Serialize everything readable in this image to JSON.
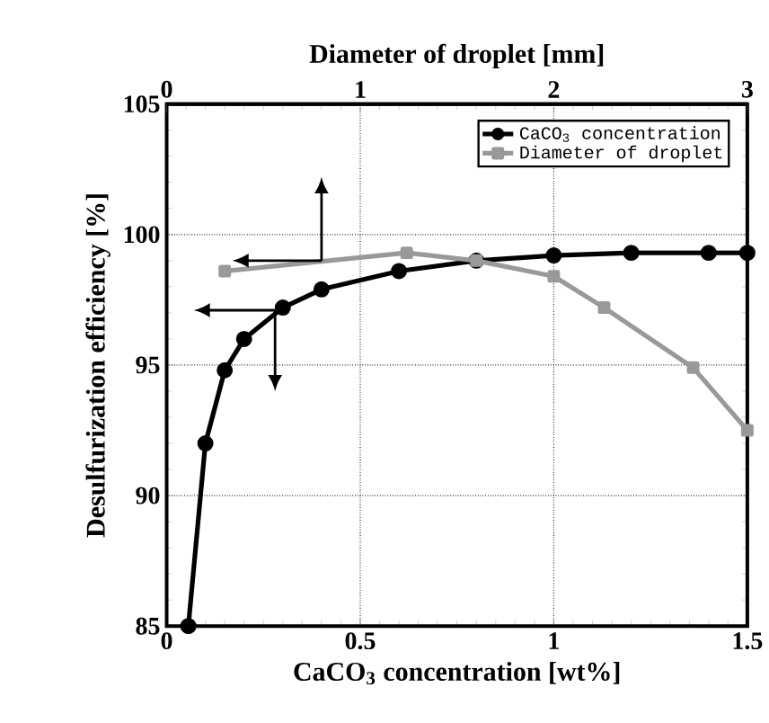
{
  "chart_data": {
    "type": "line",
    "xlabel": "CaCO$_{3}$ concentration [wt%]",
    "ylabel": "Desulfurization efficiency [%]",
    "x2label": "Diameter of droplet [mm]",
    "xlim": [
      0,
      1.5
    ],
    "xticks": [
      0,
      0.5,
      1,
      1.5
    ],
    "x2lim": [
      0,
      3
    ],
    "x2ticks": [
      0,
      1,
      2,
      3
    ],
    "ylim": [
      85,
      105
    ],
    "yticks": [
      85,
      90,
      95,
      100,
      105
    ],
    "grid": true,
    "legend": "top right",
    "series": [
      {
        "name": "CaCO$_{3}$ concentration",
        "color": "#000000",
        "marker": "circle",
        "x": [
          0.056,
          0.1,
          0.15,
          0.2,
          0.3,
          0.4,
          0.6,
          0.8,
          1.0,
          1.2,
          1.4,
          1.5
        ],
        "values": [
          85,
          92,
          94.8,
          96,
          97.2,
          97.9,
          98.6,
          99.0,
          99.2,
          99.3,
          99.3,
          99.3
        ]
      },
      {
        "name": "Diameter of droplet",
        "color": "#999999",
        "marker": "square",
        "axis": "x2",
        "x": [
          0.3,
          1.24,
          1.6,
          2.0,
          2.26,
          2.72,
          3.0
        ],
        "values": [
          98.6,
          99.3,
          99.0,
          98.4,
          97.2,
          94.9,
          92.5
        ]
      }
    ]
  }
}
